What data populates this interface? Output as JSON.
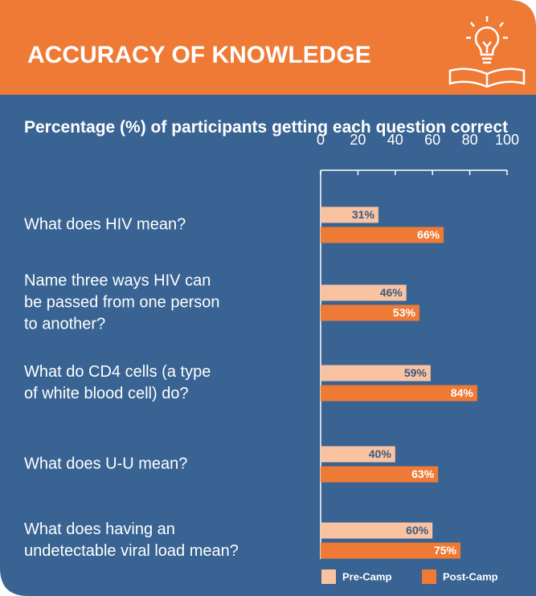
{
  "header": {
    "title": "ACCURACY OF KNOWLEDGE"
  },
  "chart_data": {
    "type": "bar",
    "orientation": "horizontal",
    "title": "Percentage (%) of participants getting each question correct",
    "categories": [
      "What does HIV mean?",
      "Name three ways HIV can\nbe passed from one person\nto another?",
      "What do CD4 cells (a type\nof white blood cell) do?",
      "What does U-U mean?",
      "What does having an\nundetectable viral load mean?"
    ],
    "series": [
      {
        "name": "Pre-Camp",
        "color": "#f9c2a1",
        "values": [
          31,
          46,
          59,
          40,
          60
        ],
        "value_labels": [
          "31%",
          "46%",
          "59%",
          "40%",
          "60%"
        ]
      },
      {
        "name": "Post-Camp",
        "color": "#ef7a35",
        "values": [
          66,
          53,
          84,
          63,
          75
        ],
        "value_labels": [
          "66%",
          "53%",
          "84%",
          "63%",
          "75%"
        ]
      }
    ],
    "xlim": [
      0,
      100
    ],
    "xticks": [
      0,
      20,
      40,
      60,
      80,
      100
    ],
    "grid": false,
    "legend": "bottom-right"
  }
}
